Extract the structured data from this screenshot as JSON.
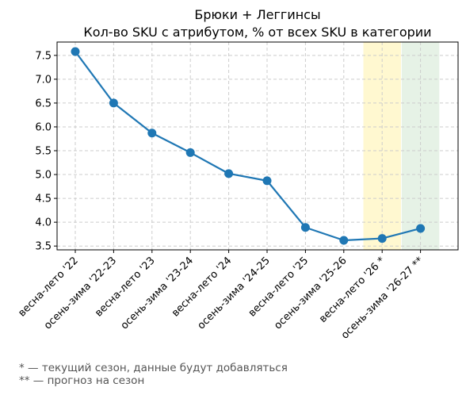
{
  "chart_data": {
    "type": "line",
    "title": "Брюки + Леггинсы",
    "subtitle": "Кол-во SKU с атрибутом, % от всех SKU в категории",
    "categories": [
      "весна-лето '22",
      "осень-зима '22-23",
      "весна-лето '23",
      "осень-зима '23-24",
      "весна-лето '24",
      "осень-зима '24-25",
      "весна-лето '25",
      "осень-зима '25-26",
      "весна-лето '26 *",
      "осень-зима '26-27 **"
    ],
    "series": [
      {
        "values": [
          7.58,
          6.5,
          5.87,
          5.46,
          5.02,
          4.87,
          3.89,
          3.62,
          3.66,
          3.87
        ],
        "color": "#1f77b4"
      }
    ],
    "ylim": [
      3.42,
      7.78
    ],
    "yticks": [
      "3.5",
      "4.0",
      "4.5",
      "5.0",
      "5.5",
      "6.0",
      "6.5",
      "7.0",
      "7.5"
    ],
    "grid": true,
    "highlights": [
      {
        "category_index": 8,
        "color": "#fff3b0"
      },
      {
        "category_index": 9,
        "color": "#d5ead5"
      }
    ]
  },
  "footnotes": [
    "* — текущий сезон, данные будут добавляться",
    "** — прогноз на сезон"
  ]
}
